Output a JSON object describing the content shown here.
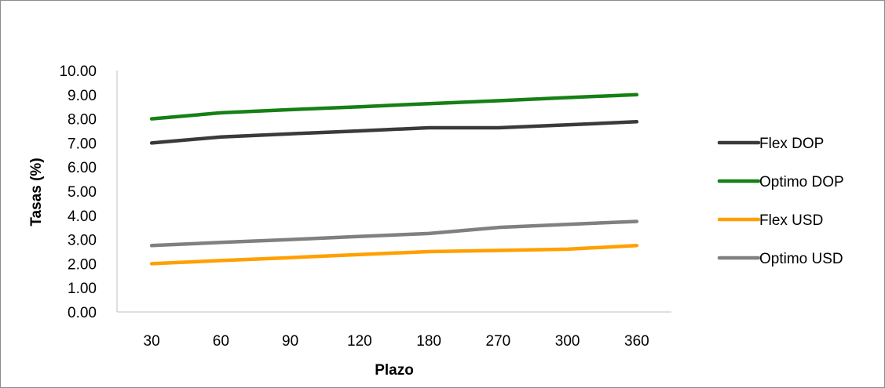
{
  "chart_data": {
    "type": "line",
    "title": "",
    "xlabel": "Plazo",
    "ylabel": "Tasas (%)",
    "categories": [
      "30",
      "60",
      "90",
      "120",
      "180",
      "270",
      "300",
      "360"
    ],
    "ylim": [
      0,
      10
    ],
    "yticks": [
      "0.00",
      "1.00",
      "2.00",
      "3.00",
      "4.00",
      "5.00",
      "6.00",
      "7.00",
      "8.00",
      "9.00",
      "10.00"
    ],
    "grid": false,
    "legend_position": "right",
    "series": [
      {
        "name": "Flex DOP",
        "color": "#3a3a3a",
        "values": [
          7.0,
          7.25,
          7.38,
          7.5,
          7.63,
          7.63,
          7.75,
          7.88
        ]
      },
      {
        "name": "Optimo DOP",
        "color": "#158015",
        "values": [
          8.0,
          8.25,
          8.38,
          8.5,
          8.63,
          8.75,
          8.88,
          9.0
        ]
      },
      {
        "name": "Flex USD",
        "color": "#ffa000",
        "values": [
          2.0,
          2.13,
          2.25,
          2.38,
          2.5,
          2.55,
          2.6,
          2.75
        ]
      },
      {
        "name": "Optimo USD",
        "color": "#808080",
        "values": [
          2.75,
          2.88,
          3.0,
          3.13,
          3.25,
          3.5,
          3.63,
          3.75
        ]
      }
    ]
  }
}
